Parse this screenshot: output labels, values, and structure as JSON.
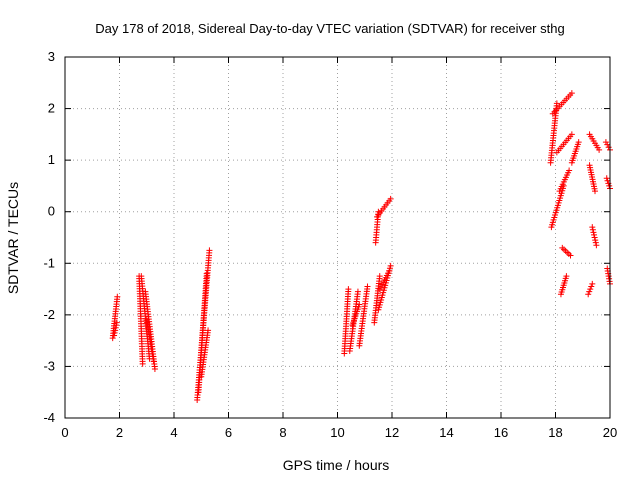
{
  "chart_data": {
    "type": "scatter",
    "title": "Day 178 of 2018, Sidereal Day-to-day VTEC variation (SDTVAR) for receiver sthg",
    "xlabel": "GPS time / hours",
    "ylabel": "SDTVAR / TECUs",
    "xlim": [
      0,
      20
    ],
    "ylim": [
      -4,
      3
    ],
    "xticks": [
      0,
      2,
      4,
      6,
      8,
      10,
      12,
      14,
      16,
      18,
      20
    ],
    "yticks": [
      -4,
      -3,
      -2,
      -1,
      0,
      1,
      2,
      3
    ],
    "grid": true,
    "marker": "+",
    "color": "#ff0000",
    "tracks": [
      {
        "x": [
          1.75,
          1.92
        ],
        "y": [
          -2.45,
          -1.65
        ]
      },
      {
        "x": [
          1.8,
          1.9
        ],
        "y": [
          -2.4,
          -2.15
        ]
      },
      {
        "x": [
          2.72,
          2.85
        ],
        "y": [
          -1.25,
          -2.95
        ]
      },
      {
        "x": [
          2.8,
          3.1
        ],
        "y": [
          -1.25,
          -2.85
        ]
      },
      {
        "x": [
          2.95,
          3.3
        ],
        "y": [
          -1.55,
          -3.05
        ]
      },
      {
        "x": [
          3.0,
          3.25
        ],
        "y": [
          -2.1,
          -2.9
        ]
      },
      {
        "x": [
          4.85,
          5.3
        ],
        "y": [
          -3.65,
          -0.75
        ]
      },
      {
        "x": [
          4.9,
          5.2
        ],
        "y": [
          -3.5,
          -1.2
        ]
      },
      {
        "x": [
          5.0,
          5.25
        ],
        "y": [
          -3.2,
          -2.3
        ]
      },
      {
        "x": [
          10.25,
          10.4
        ],
        "y": [
          -2.75,
          -1.5
        ]
      },
      {
        "x": [
          10.45,
          10.75
        ],
        "y": [
          -2.7,
          -1.55
        ]
      },
      {
        "x": [
          10.55,
          10.8
        ],
        "y": [
          -2.2,
          -1.8
        ]
      },
      {
        "x": [
          10.8,
          11.1
        ],
        "y": [
          -2.6,
          -1.45
        ]
      },
      {
        "x": [
          11.35,
          11.55
        ],
        "y": [
          -2.15,
          -1.25
        ]
      },
      {
        "x": [
          11.4,
          11.5
        ],
        "y": [
          -0.6,
          0.0
        ]
      },
      {
        "x": [
          11.45,
          11.95
        ],
        "y": [
          -0.1,
          0.25
        ]
      },
      {
        "x": [
          11.5,
          11.95
        ],
        "y": [
          -1.9,
          -1.05
        ]
      },
      {
        "x": [
          11.55,
          11.9
        ],
        "y": [
          -1.5,
          -1.15
        ]
      },
      {
        "x": [
          17.82,
          18.05
        ],
        "y": [
          0.95,
          2.1
        ]
      },
      {
        "x": [
          17.9,
          18.6
        ],
        "y": [
          1.9,
          2.3
        ]
      },
      {
        "x": [
          17.85,
          18.3
        ],
        "y": [
          -0.3,
          0.5
        ]
      },
      {
        "x": [
          18.05,
          18.6
        ],
        "y": [
          1.15,
          1.5
        ]
      },
      {
        "x": [
          18.15,
          18.5
        ],
        "y": [
          0.4,
          0.8
        ]
      },
      {
        "x": [
          18.2,
          18.4
        ],
        "y": [
          -1.6,
          -1.25
        ]
      },
      {
        "x": [
          18.25,
          18.55
        ],
        "y": [
          -0.7,
          -0.85
        ]
      },
      {
        "x": [
          18.6,
          18.85
        ],
        "y": [
          0.95,
          1.35
        ]
      },
      {
        "x": [
          19.2,
          19.35
        ],
        "y": [
          -1.6,
          -1.4
        ]
      },
      {
        "x": [
          19.25,
          19.6
        ],
        "y": [
          1.5,
          1.2
        ]
      },
      {
        "x": [
          19.25,
          19.45
        ],
        "y": [
          0.9,
          0.4
        ]
      },
      {
        "x": [
          19.35,
          19.5
        ],
        "y": [
          -0.3,
          -0.65
        ]
      },
      {
        "x": [
          19.85,
          20.0
        ],
        "y": [
          1.35,
          1.2
        ]
      },
      {
        "x": [
          19.88,
          20.0
        ],
        "y": [
          0.65,
          0.45
        ]
      },
      {
        "x": [
          19.9,
          20.0
        ],
        "y": [
          -1.1,
          -1.4
        ]
      }
    ]
  }
}
